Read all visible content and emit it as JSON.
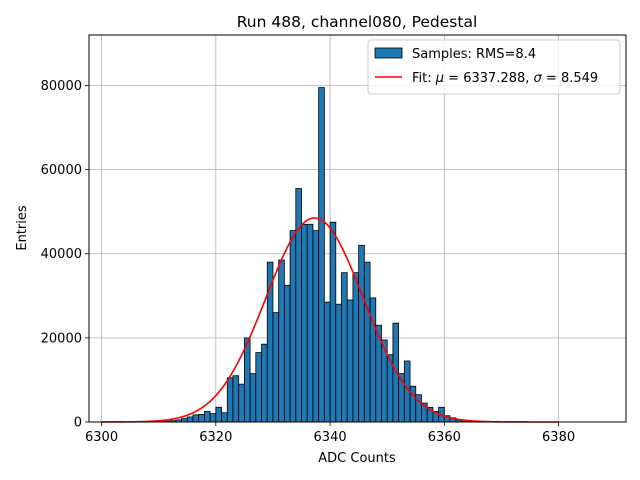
{
  "chart_data": {
    "type": "bar",
    "title": "Run 488, channel080, Pedestal",
    "xlabel": "ADC Counts",
    "ylabel": "Entries",
    "xlim": [
      6297.8,
      6391.8
    ],
    "ylim": [
      0,
      92000
    ],
    "xticks": [
      6300,
      6320,
      6340,
      6360,
      6380
    ],
    "yticks": [
      0,
      20000,
      40000,
      60000,
      80000
    ],
    "grid": true,
    "legend_position": "top-right",
    "colors": {
      "bars": "#1f77b4",
      "bar_edge": "#000000",
      "fit": "#ff0000",
      "grid": "#b0b0b0"
    },
    "histogram": {
      "name": "Samples: RMS=8.4",
      "bin_width": 1,
      "bin_starts": [
        6310,
        6311,
        6312,
        6313,
        6314,
        6315,
        6316,
        6317,
        6318,
        6319,
        6320,
        6321,
        6322,
        6323,
        6324,
        6325,
        6326,
        6327,
        6328,
        6329,
        6330,
        6331,
        6332,
        6333,
        6334,
        6335,
        6336,
        6337,
        6338,
        6339,
        6340,
        6341,
        6342,
        6343,
        6344,
        6345,
        6346,
        6347,
        6348,
        6349,
        6350,
        6351,
        6352,
        6353,
        6354,
        6355,
        6356,
        6357,
        6358,
        6359,
        6360,
        6361,
        6362,
        6363,
        6364
      ],
      "values": [
        100,
        200,
        300,
        500,
        800,
        1200,
        1700,
        1800,
        2500,
        2000,
        3500,
        2200,
        10500,
        11000,
        9000,
        20000,
        11500,
        16500,
        18500,
        38000,
        26000,
        38500,
        32500,
        45500,
        55500,
        47000,
        47000,
        45500,
        79500,
        28500,
        47500,
        28000,
        35500,
        29000,
        35500,
        42000,
        38000,
        29500,
        23000,
        19500,
        16000,
        23500,
        11500,
        14500,
        8500,
        6500,
        4500,
        3500,
        2500,
        3500,
        1500,
        1000,
        500,
        200,
        100
      ]
    },
    "fit": {
      "name_prefix": "Fit:",
      "mu_symbol": "μ",
      "sigma_symbol": "σ",
      "mu": 6337.288,
      "sigma": 8.549,
      "amplitude": 48500,
      "x_range": [
        6300,
        6380
      ]
    },
    "legend": [
      "Samples: RMS=8.4",
      "Fit: μ = 6337.288, σ = 8.549"
    ]
  }
}
